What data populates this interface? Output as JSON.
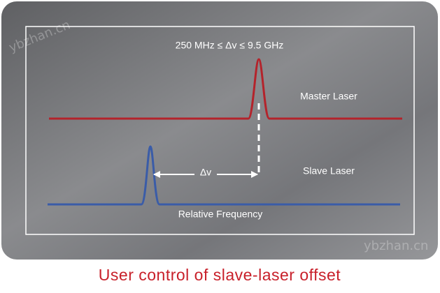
{
  "annotation": "250 MHz ≤ Δv ≤ 9.5 GHz",
  "labels": {
    "master": "Master Laser",
    "slave": "Slave Laser",
    "delta": "Δv",
    "axis": "Relative Frequency"
  },
  "caption": "User control of slave-laser offset",
  "watermarks": [
    "ybzhan.cn",
    "ybzhan.cn"
  ]
}
